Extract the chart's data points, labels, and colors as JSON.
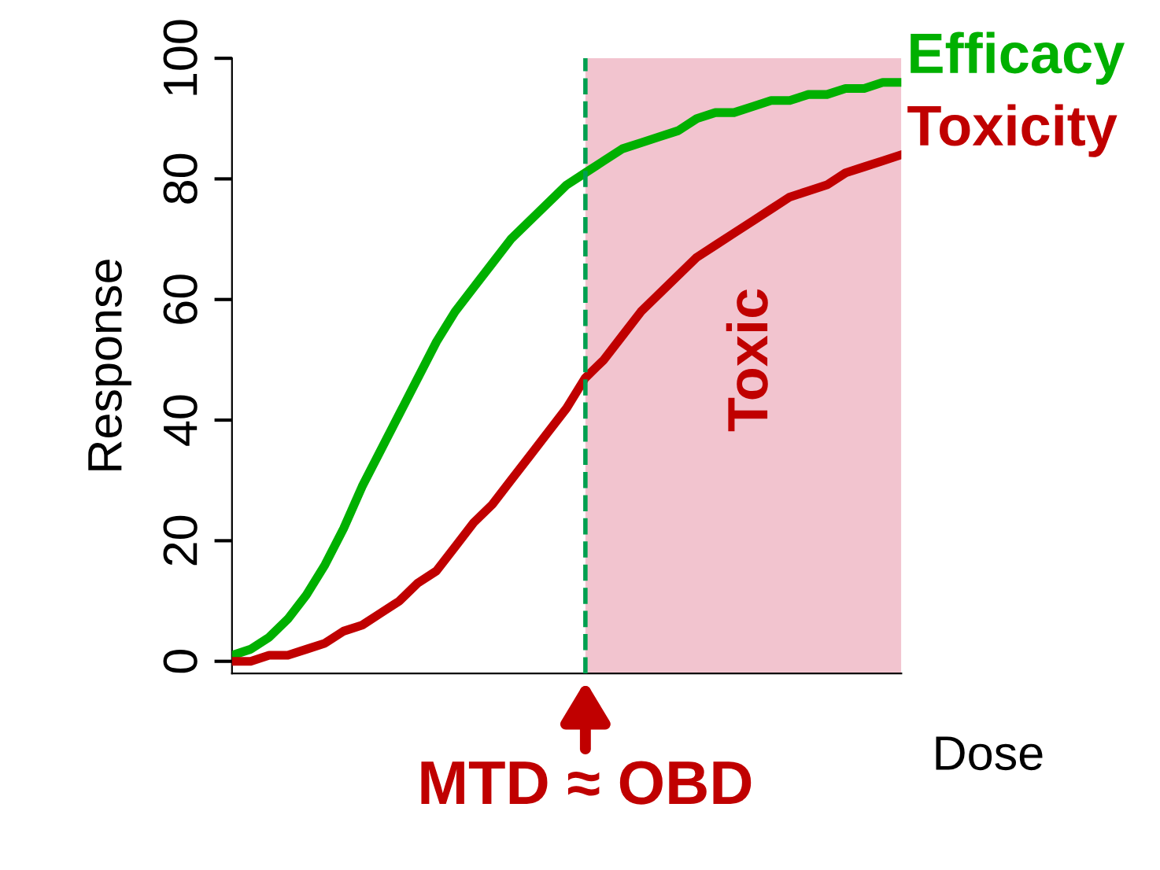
{
  "chart_data": {
    "type": "line",
    "ylabel": "Response",
    "xlabel": "Dose",
    "categories": [
      null,
      null,
      null,
      null,
      null,
      null,
      null,
      null,
      null,
      null,
      null,
      null,
      null,
      null,
      null,
      null,
      null,
      null,
      null,
      null,
      null,
      null,
      null,
      null,
      null,
      null,
      null,
      null,
      null,
      null,
      null,
      null,
      null,
      null,
      null,
      null,
      null
    ],
    "series": [
      {
        "name": "Efficacy",
        "color": "#00b000",
        "values": [
          1,
          2,
          4,
          7,
          11,
          16,
          22,
          29,
          35,
          41,
          47,
          53,
          58,
          62,
          66,
          70,
          73,
          76,
          79,
          81,
          83,
          85,
          86,
          87,
          88,
          90,
          91,
          91,
          92,
          93,
          93,
          94,
          94,
          95,
          95,
          96,
          96
        ]
      },
      {
        "name": "Toxicity",
        "color": "#c00000",
        "values": [
          0,
          0,
          1,
          1,
          2,
          3,
          5,
          6,
          8,
          10,
          13,
          15,
          19,
          23,
          26,
          30,
          34,
          38,
          42,
          47,
          50,
          54,
          58,
          61,
          64,
          67,
          69,
          71,
          73,
          75,
          77,
          78,
          79,
          81,
          82,
          83,
          84
        ]
      }
    ],
    "ylim": [
      -2,
      100
    ],
    "yticks": [
      0,
      20,
      40,
      60,
      80,
      100
    ],
    "tick_labels": "y",
    "annotations": [
      "Toxic",
      "MTD ≈ OBD"
    ],
    "grid": false,
    "legend": false,
    "marker": "none",
    "line_style": "solid"
  }
}
